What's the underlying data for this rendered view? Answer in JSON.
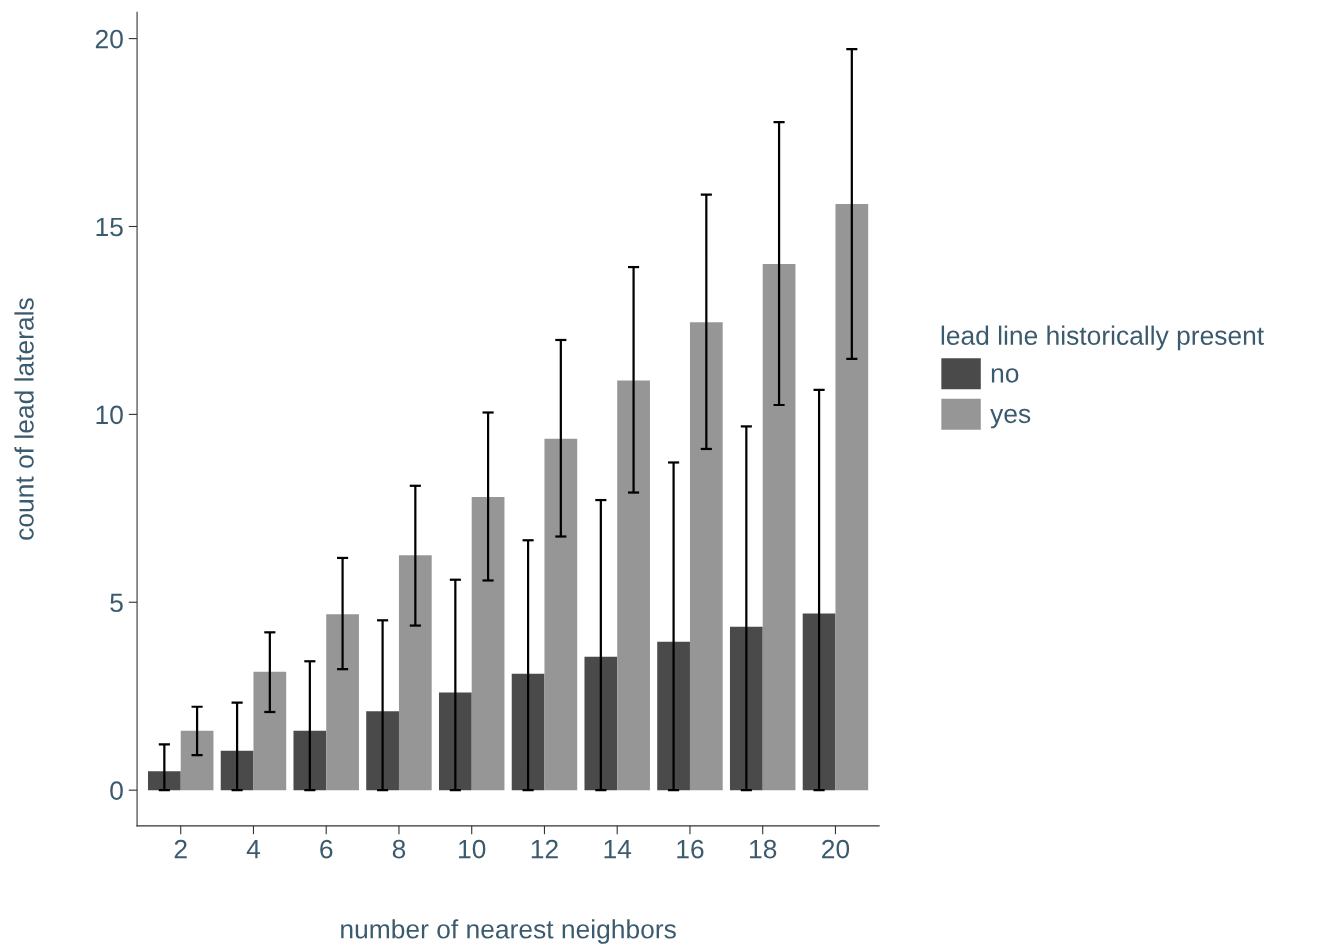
{
  "chart_data": {
    "type": "bar",
    "xlabel": "number of nearest neighbors",
    "ylabel": "count of lead laterals",
    "legend_title": "lead line historically present",
    "categories": [
      "2",
      "4",
      "6",
      "8",
      "10",
      "12",
      "14",
      "16",
      "18",
      "20"
    ],
    "series": [
      {
        "name": "no",
        "color": "#4a4a4a",
        "values": [
          0.5,
          1.05,
          1.58,
          2.1,
          2.6,
          3.1,
          3.55,
          3.95,
          4.35,
          4.7
        ],
        "errors": [
          [
            0,
            1.22
          ],
          [
            0,
            2.33
          ],
          [
            0,
            3.43
          ],
          [
            0,
            4.52
          ],
          [
            0,
            5.6
          ],
          [
            0,
            6.65
          ],
          [
            0,
            7.72
          ],
          [
            0,
            8.72
          ],
          [
            0,
            9.68
          ],
          [
            0,
            10.65
          ]
        ]
      },
      {
        "name": "yes",
        "color": "#969696",
        "values": [
          1.58,
          3.15,
          4.68,
          6.25,
          7.8,
          9.35,
          10.9,
          12.45,
          14.0,
          15.6
        ],
        "errors": [
          [
            0.93,
            2.22
          ],
          [
            2.08,
            4.2
          ],
          [
            3.22,
            6.18
          ],
          [
            4.38,
            8.1
          ],
          [
            5.58,
            10.05
          ],
          [
            6.75,
            11.98
          ],
          [
            7.92,
            13.92
          ],
          [
            9.08,
            15.85
          ],
          [
            10.25,
            17.78
          ],
          [
            11.48,
            19.72
          ]
        ]
      }
    ],
    "ylim": [
      -0.95,
      20.7
    ],
    "yticks": [
      0,
      5,
      10,
      15,
      20
    ],
    "grid": false,
    "legend": "right"
  }
}
